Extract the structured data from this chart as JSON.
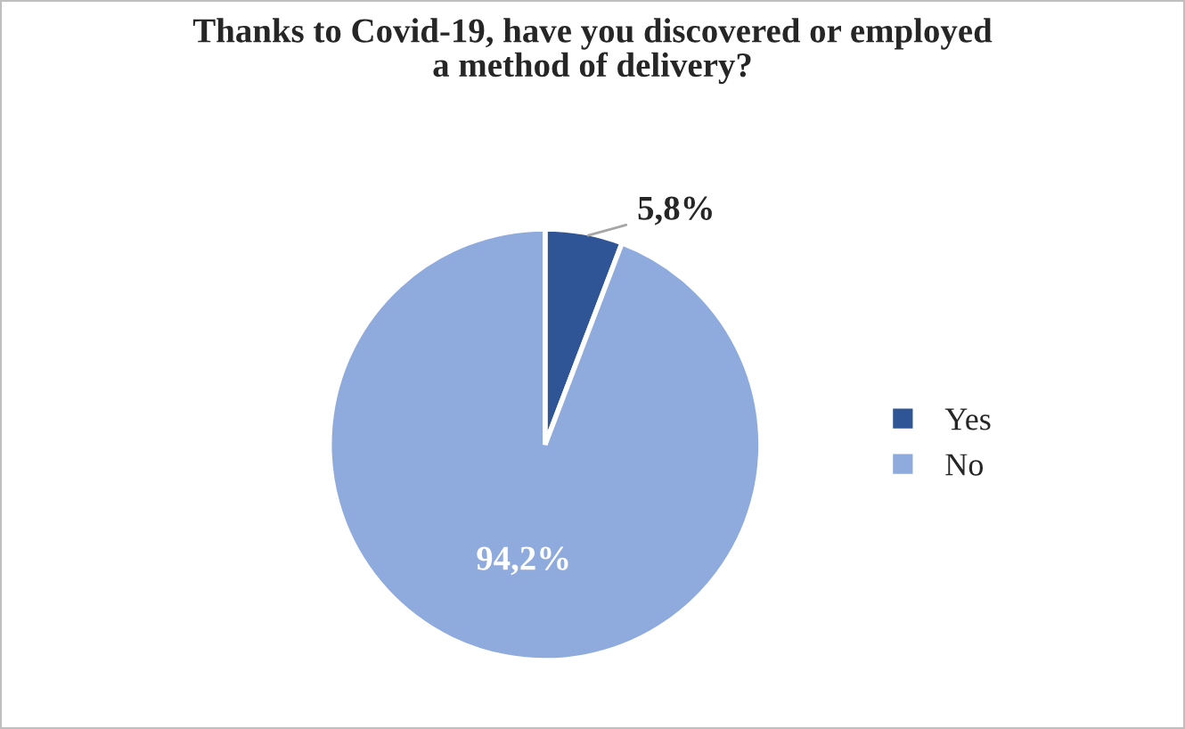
{
  "chart_data": {
    "type": "pie",
    "title": "Thanks to Covid-19, have you discovered or employed\na method of delivery?",
    "categories": [
      "Yes",
      "No"
    ],
    "values": [
      5.8,
      94.2
    ],
    "colors": [
      "#2f5597",
      "#8faadc"
    ],
    "value_labels": [
      "5,8%",
      "94,2%"
    ],
    "legend": "right"
  }
}
